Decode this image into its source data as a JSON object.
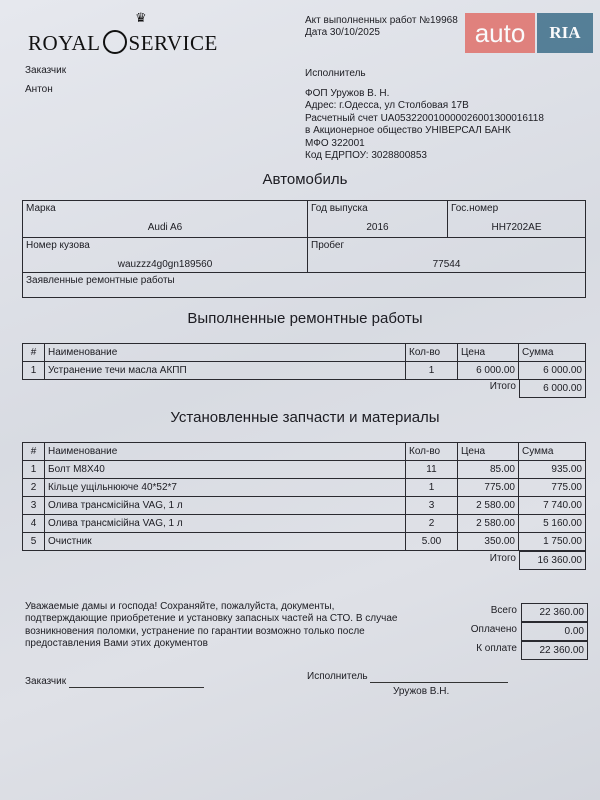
{
  "logo": {
    "left": "ROYAL",
    "right": "SERVICE"
  },
  "watermark": {
    "auto": "auto",
    "ria": "RIA",
    "colors": {
      "auto": "#e0716b",
      "ria": "#3e6e8a"
    }
  },
  "act": {
    "number": "Акт выполненных работ №19968",
    "date": "Дата 30/10/2025"
  },
  "customer": {
    "label": "Заказчик",
    "name": "Антон"
  },
  "contractor": {
    "label": "Исполнитель",
    "lines": [
      "ФОП Уружов В. Н.",
      "Адрес: г.Одесса, ул Столбовая 17В",
      "Расчетный счет UA053220010000026001300016118",
      "в Акционерное общество УНІВЕРСАЛ БАНК",
      "МФО 322001",
      "Код ЕДРПОУ: 3028800853"
    ]
  },
  "car": {
    "heading": "Автомобиль",
    "brand_label": "Марка",
    "brand": "Audi A6",
    "year_label": "Год выпуска",
    "year": "2016",
    "plate_label": "Гос.номер",
    "plate": "HH7202AE",
    "vin_label": "Номер кузова",
    "vin": "wauzzz4g0gn189560",
    "mileage_label": "Пробег",
    "mileage": "77544",
    "declared_label": "Заявленные ремонтные работы"
  },
  "columns": [
    "#",
    "Наименование",
    "Кол-во",
    "Цена",
    "Сумма"
  ],
  "works": {
    "heading": "Выполненные ремонтные работы",
    "rows": [
      [
        "1",
        "Устранение течи масла АКПП",
        "1",
        "6 000.00",
        "6 000.00"
      ]
    ],
    "total_label": "Итого",
    "total": "6 000.00"
  },
  "parts": {
    "heading": "Установленные запчасти и материалы",
    "rows": [
      [
        "1",
        "Болт M8X40",
        "11",
        "85.00",
        "935.00"
      ],
      [
        "2",
        "Кільце ущільнююче 40*52*7",
        "1",
        "775.00",
        "775.00"
      ],
      [
        "3",
        "Олива трансмісійна VAG, 1 л",
        "3",
        "2 580.00",
        "7 740.00"
      ],
      [
        "4",
        "Олива трансмісійна VAG, 1 л",
        "2",
        "2 580.00",
        "5 160.00"
      ],
      [
        "5",
        "Очистник",
        "5.00",
        "350.00",
        "1 750.00"
      ]
    ],
    "total_label": "Итого",
    "total": "16 360.00"
  },
  "note": [
    "Уважаемые дамы и господа! Сохраняйте, пожалуйста, документы,",
    "подтверждающие приобретение и установку запасных частей на СТО. В случае",
    "возникновения поломки, устранение по гарантии возможно только после",
    "предоставления Вами этих документов"
  ],
  "summary": {
    "total_label": "Всего",
    "total": "22 360.00",
    "paid_label": "Оплачено",
    "paid": "0.00",
    "due_label": "К оплате",
    "due": "22 360.00"
  },
  "signatures": {
    "customer_label": "Заказчик",
    "contractor_label": "Исполнитель",
    "contractor_name": "Уружов В.Н."
  }
}
